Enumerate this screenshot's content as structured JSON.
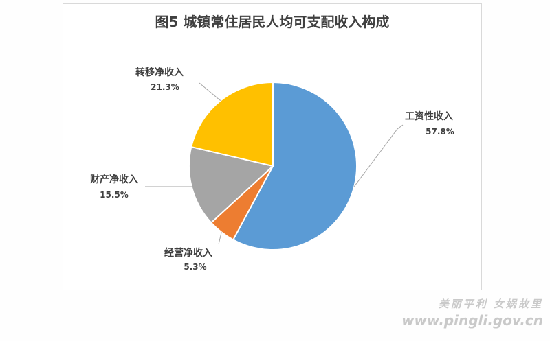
{
  "chart_data": {
    "type": "pie",
    "title": "图5  城镇常住居民人均可支配收入构成",
    "slices": [
      {
        "label": "工资性收入",
        "value": 57.8,
        "value_label": "57.8%",
        "color": "#5b9bd5"
      },
      {
        "label": "经营净收入",
        "value": 5.3,
        "value_label": "5.3%",
        "color": "#ed7d31"
      },
      {
        "label": "财产净收入",
        "value": 15.5,
        "value_label": "15.5%",
        "color": "#a5a5a5"
      },
      {
        "label": "转移净收入",
        "value": 21.3,
        "value_label": "21.3%",
        "color": "#ffc000"
      }
    ],
    "start_angle": "12 o'clock",
    "direction": "clockwise",
    "legend": "none",
    "data_labels": "outside with leader lines"
  },
  "watermark": {
    "line1": "美丽平利 女娲故里",
    "line2": "www.pingli.gov.cn"
  }
}
